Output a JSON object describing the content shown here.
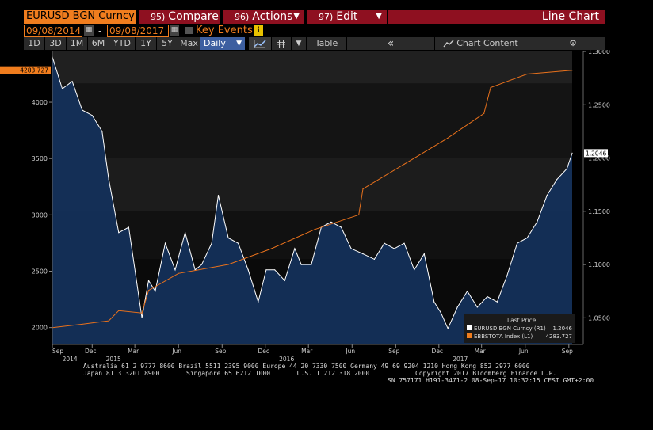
{
  "header": {
    "ticker": "EURUSD BGN Curncy",
    "menus": [
      {
        "num": "95)",
        "label": "Compare"
      },
      {
        "num": "96)",
        "label": "Actions"
      },
      {
        "num": "97)",
        "label": "Edit"
      }
    ],
    "title": "Line Chart"
  },
  "dates": {
    "start": "09/08/2014",
    "separator": "-",
    "end": "09/08/2017",
    "key_events": "Key Events",
    "info_icon": "i"
  },
  "toolbar": {
    "ranges": [
      "1D",
      "3D",
      "1M",
      "6M",
      "YTD",
      "1Y",
      "5Y",
      "Max"
    ],
    "frequency": "Daily",
    "table": "Table",
    "back": "«",
    "chart_content": "Chart Content",
    "gear": "⚙"
  },
  "chart_data": {
    "type": "line",
    "x_tick_labels": [
      "Sep",
      "Dec",
      "Mar",
      "Jun",
      "Sep",
      "Dec",
      "Mar",
      "Jun",
      "Sep",
      "Dec",
      "Mar",
      "Jun",
      "Sep"
    ],
    "year_labels": [
      "2014",
      "2015",
      "2016",
      "2017"
    ],
    "left_axis": {
      "ticks": [
        "4000",
        "3500",
        "3000",
        "2500",
        "2000"
      ],
      "ylim": [
        1850,
        4450
      ],
      "current": "4283.727"
    },
    "right_axis": {
      "ticks": [
        "1.3000",
        "1.2500",
        "1.2000",
        "1.1500",
        "1.1000",
        "1.0500"
      ],
      "ylim": [
        1.025,
        1.3
      ],
      "current": "1.2046"
    },
    "legend": {
      "title": "Last Price",
      "entries": [
        {
          "name": "EURUSD BGN Curncy  (R1)",
          "value": "1.2046",
          "color": "#ffffff"
        },
        {
          "name": "EBBSTOTA Index  (L1)",
          "value": "4283.727",
          "color": "#f07d1e"
        }
      ]
    },
    "series": [
      {
        "name": "EURUSD BGN Curncy",
        "axis": "right",
        "color": "#ffffff",
        "fill": "#14305a",
        "x": [
          "2014-09-08",
          "2014-09-29",
          "2014-10-20",
          "2014-11-10",
          "2014-12-01",
          "2014-12-22",
          "2015-01-05",
          "2015-01-26",
          "2015-02-16",
          "2015-03-16",
          "2015-03-30",
          "2015-04-13",
          "2015-05-04",
          "2015-05-25",
          "2015-06-15",
          "2015-07-06",
          "2015-07-20",
          "2015-08-10",
          "2015-08-24",
          "2015-09-14",
          "2015-10-05",
          "2015-10-26",
          "2015-11-16",
          "2015-12-03",
          "2015-12-21",
          "2016-01-11",
          "2016-02-01",
          "2016-02-15",
          "2016-03-07",
          "2016-03-28",
          "2016-04-18",
          "2016-05-09",
          "2016-05-30",
          "2016-06-24",
          "2016-07-18",
          "2016-08-08",
          "2016-08-29",
          "2016-09-19",
          "2016-10-10",
          "2016-10-31",
          "2016-11-21",
          "2016-12-05",
          "2016-12-20",
          "2017-01-09",
          "2017-01-30",
          "2017-02-20",
          "2017-03-13",
          "2017-04-03",
          "2017-04-24",
          "2017-05-15",
          "2017-06-05",
          "2017-06-26",
          "2017-07-17",
          "2017-08-07",
          "2017-08-28",
          "2017-09-08"
        ],
        "values": [
          1.295,
          1.265,
          1.272,
          1.245,
          1.24,
          1.225,
          1.18,
          1.13,
          1.135,
          1.05,
          1.085,
          1.075,
          1.12,
          1.095,
          1.13,
          1.095,
          1.1,
          1.12,
          1.165,
          1.125,
          1.12,
          1.095,
          1.065,
          1.095,
          1.095,
          1.085,
          1.115,
          1.1,
          1.1,
          1.135,
          1.14,
          1.135,
          1.115,
          1.11,
          1.105,
          1.12,
          1.115,
          1.12,
          1.095,
          1.11,
          1.065,
          1.055,
          1.04,
          1.06,
          1.075,
          1.06,
          1.07,
          1.065,
          1.09,
          1.12,
          1.125,
          1.14,
          1.165,
          1.18,
          1.19,
          1.2046
        ]
      },
      {
        "name": "EBBSTOTA Index",
        "axis": "left",
        "color": "#e8711c",
        "x": [
          "2014-09-08",
          "2014-11-10",
          "2015-01-05",
          "2015-01-26",
          "2015-03-16",
          "2015-03-30",
          "2015-06-01",
          "2015-09-14",
          "2015-12-14",
          "2016-03-14",
          "2016-06-15",
          "2016-06-24",
          "2016-09-19",
          "2016-12-19",
          "2017-03-06",
          "2017-03-20",
          "2017-06-05",
          "2017-09-08"
        ],
        "values": [
          2000,
          2030,
          2060,
          2150,
          2130,
          2330,
          2480,
          2560,
          2700,
          2870,
          3000,
          3230,
          3450,
          3680,
          3900,
          4130,
          4250,
          4283.727
        ]
      }
    ]
  },
  "footer": {
    "line1": "Australia 61 2 9777 8600 Brazil 5511 2395 9000 Europe 44 20 7330 7500 Germany 49 69 9204 1210 Hong Kong 852 2977 6000",
    "line2": "Japan 81 3 3201 8900       Singapore 65 6212 1000       U.S. 1 212 318 2000            Copyright 2017 Bloomberg Finance L.P.",
    "line3": "SN 757171 H191-3471-2 08-Sep-17 10:32:15 CEST GMT+2:00"
  }
}
